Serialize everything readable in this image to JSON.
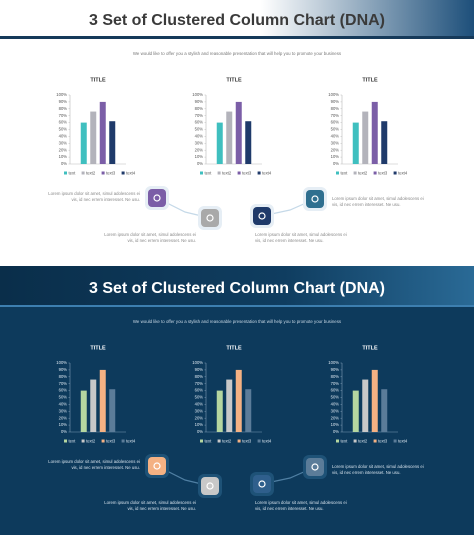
{
  "slides": [
    {
      "title": "3 Set of Clustered Column Chart (DNA)",
      "subtitle": "We would like to offer you a stylish and reasonable presentation that will help you to promote your business",
      "notes": [
        [
          "Lorem ipsum dolor sit amet, simul adolescens ei",
          "vis, id nec errem interesset. Ne usu."
        ],
        [
          "Lorem ipsum dolor sit amet, simul adolescens ei",
          "vis, id nec errem interesset. Ne usu."
        ],
        [
          "Lorem ipsum dolor sit amet, simul adolescens ei",
          "vis, id nec errem interesset. Ne usu."
        ],
        [
          "Lorem ipsum dolor sit amet, simul adolescens ei",
          "vis, id nec errem interesset. Ne usu."
        ]
      ]
    },
    {
      "title": "3 Set of Clustered Column Chart (DNA)",
      "subtitle": "We would like to offer you a stylish and reasonable presentation that will help you to promote your business",
      "notes": [
        [
          "Lorem ipsum dolor sit amet, simul adolescens ei",
          "vis, id nec errem interesset. Ne usu."
        ],
        [
          "Lorem ipsum dolor sit amet, simul adolescens ei",
          "vis, id nec errem interesset. Ne usu."
        ],
        [
          "Lorem ipsum dolor sit amet, simul adolescens ei",
          "vis, id nec errem interesset. Ne usu."
        ],
        [
          "Lorem ipsum dolor sit amet, simul adolescens ei",
          "vis, id nec errem interesset. Ne usu."
        ]
      ]
    }
  ],
  "chart_data": [
    {
      "type": "bar",
      "title": "TITLE",
      "categories": [
        null
      ],
      "ylim": [
        0,
        100
      ],
      "yticks": [
        {
          "value": 0,
          "label": "0%"
        },
        {
          "value": 10,
          "label": "10%"
        },
        {
          "value": 20,
          "label": "20%"
        },
        {
          "value": 30,
          "label": "30%"
        },
        {
          "value": 40,
          "label": "40%"
        },
        {
          "value": 50,
          "label": "50%"
        },
        {
          "value": 60,
          "label": "60%"
        },
        {
          "value": 70,
          "label": "70%"
        },
        {
          "value": 80,
          "label": "80%"
        },
        {
          "value": 90,
          "label": "90%"
        },
        {
          "value": 100,
          "label": "100%"
        }
      ],
      "series": [
        {
          "name": "text",
          "color": "#3fbfbf",
          "values": [
            60
          ]
        },
        {
          "name": "text2",
          "color": "#b3b3bb",
          "values": [
            76
          ]
        },
        {
          "name": "text3",
          "color": "#7b5ea7",
          "values": [
            90
          ]
        },
        {
          "name": "text4",
          "color": "#1f3a6a",
          "values": [
            62
          ]
        }
      ]
    },
    {
      "type": "bar",
      "title": "TITLE",
      "categories": [
        null
      ],
      "ylim": [
        0,
        100
      ],
      "yticks": [
        {
          "value": 0,
          "label": "0%"
        },
        {
          "value": 10,
          "label": "10%"
        },
        {
          "value": 20,
          "label": "20%"
        },
        {
          "value": 30,
          "label": "30%"
        },
        {
          "value": 40,
          "label": "40%"
        },
        {
          "value": 50,
          "label": "50%"
        },
        {
          "value": 60,
          "label": "60%"
        },
        {
          "value": 70,
          "label": "70%"
        },
        {
          "value": 80,
          "label": "80%"
        },
        {
          "value": 90,
          "label": "90%"
        },
        {
          "value": 100,
          "label": "100%"
        }
      ],
      "series": [
        {
          "name": "text",
          "color": "#3fbfbf",
          "values": [
            60
          ]
        },
        {
          "name": "text2",
          "color": "#b3b3bb",
          "values": [
            76
          ]
        },
        {
          "name": "text3",
          "color": "#7b5ea7",
          "values": [
            90
          ]
        },
        {
          "name": "text4",
          "color": "#1f3a6a",
          "values": [
            62
          ]
        }
      ]
    },
    {
      "type": "bar",
      "title": "TITLE",
      "categories": [
        null
      ],
      "ylim": [
        0,
        100
      ],
      "yticks": [
        {
          "value": 0,
          "label": "0%"
        },
        {
          "value": 10,
          "label": "10%"
        },
        {
          "value": 20,
          "label": "20%"
        },
        {
          "value": 30,
          "label": "30%"
        },
        {
          "value": 40,
          "label": "40%"
        },
        {
          "value": 50,
          "label": "50%"
        },
        {
          "value": 60,
          "label": "60%"
        },
        {
          "value": 70,
          "label": "70%"
        },
        {
          "value": 80,
          "label": "80%"
        },
        {
          "value": 90,
          "label": "90%"
        },
        {
          "value": 100,
          "label": "100%"
        }
      ],
      "series": [
        {
          "name": "text",
          "color": "#3fbfbf",
          "values": [
            60
          ]
        },
        {
          "name": "text2",
          "color": "#b3b3bb",
          "values": [
            76
          ]
        },
        {
          "name": "text3",
          "color": "#7b5ea7",
          "values": [
            90
          ]
        },
        {
          "name": "text4",
          "color": "#1f3a6a",
          "values": [
            62
          ]
        }
      ]
    },
    {
      "type": "bar",
      "title": "TITLE",
      "categories": [
        null
      ],
      "ylim": [
        0,
        100
      ],
      "yticks": [
        {
          "value": 0,
          "label": "0%"
        },
        {
          "value": 10,
          "label": "10%"
        },
        {
          "value": 20,
          "label": "20%"
        },
        {
          "value": 30,
          "label": "30%"
        },
        {
          "value": 40,
          "label": "40%"
        },
        {
          "value": 50,
          "label": "50%"
        },
        {
          "value": 60,
          "label": "60%"
        },
        {
          "value": 70,
          "label": "70%"
        },
        {
          "value": 80,
          "label": "80%"
        },
        {
          "value": 90,
          "label": "90%"
        },
        {
          "value": 100,
          "label": "100%"
        }
      ],
      "series": [
        {
          "name": "text",
          "color": "#b5d6a0",
          "values": [
            60
          ]
        },
        {
          "name": "text2",
          "color": "#c8c8c8",
          "values": [
            76
          ]
        },
        {
          "name": "text3",
          "color": "#f4b183",
          "values": [
            90
          ]
        },
        {
          "name": "text4",
          "color": "#5b7c99",
          "values": [
            62
          ]
        }
      ]
    },
    {
      "type": "bar",
      "title": "TITLE",
      "categories": [
        null
      ],
      "ylim": [
        0,
        100
      ],
      "yticks": [
        {
          "value": 0,
          "label": "0%"
        },
        {
          "value": 10,
          "label": "10%"
        },
        {
          "value": 20,
          "label": "20%"
        },
        {
          "value": 30,
          "label": "30%"
        },
        {
          "value": 40,
          "label": "40%"
        },
        {
          "value": 50,
          "label": "50%"
        },
        {
          "value": 60,
          "label": "60%"
        },
        {
          "value": 70,
          "label": "70%"
        },
        {
          "value": 80,
          "label": "80%"
        },
        {
          "value": 90,
          "label": "90%"
        },
        {
          "value": 100,
          "label": "100%"
        }
      ],
      "series": [
        {
          "name": "text",
          "color": "#b5d6a0",
          "values": [
            60
          ]
        },
        {
          "name": "text2",
          "color": "#c8c8c8",
          "values": [
            76
          ]
        },
        {
          "name": "text3",
          "color": "#f4b183",
          "values": [
            90
          ]
        },
        {
          "name": "text4",
          "color": "#5b7c99",
          "values": [
            62
          ]
        }
      ]
    },
    {
      "type": "bar",
      "title": "TITLE",
      "categories": [
        null
      ],
      "ylim": [
        0,
        100
      ],
      "yticks": [
        {
          "value": 0,
          "label": "0%"
        },
        {
          "value": 10,
          "label": "10%"
        },
        {
          "value": 20,
          "label": "20%"
        },
        {
          "value": 30,
          "label": "30%"
        },
        {
          "value": 40,
          "label": "40%"
        },
        {
          "value": 50,
          "label": "50%"
        },
        {
          "value": 60,
          "label": "60%"
        },
        {
          "value": 70,
          "label": "70%"
        },
        {
          "value": 80,
          "label": "80%"
        },
        {
          "value": 90,
          "label": "90%"
        },
        {
          "value": 100,
          "label": "100%"
        }
      ],
      "series": [
        {
          "name": "text",
          "color": "#b5d6a0",
          "values": [
            60
          ]
        },
        {
          "name": "text2",
          "color": "#c8c8c8",
          "values": [
            76
          ]
        },
        {
          "name": "text3",
          "color": "#f4b183",
          "values": [
            90
          ]
        },
        {
          "name": "text4",
          "color": "#5b7c99",
          "values": [
            62
          ]
        }
      ]
    }
  ]
}
